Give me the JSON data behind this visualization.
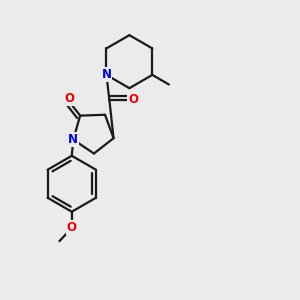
{
  "background_color": "#ebebeb",
  "bond_color": "#1a1a1a",
  "N_color": "#0000ee",
  "O_color": "#ee0000",
  "line_width": 1.6,
  "font_size": 8.5,
  "figsize": [
    3.0,
    3.0
  ],
  "dpi": 100,
  "xlim": [
    0,
    10
  ],
  "ylim": [
    0,
    10
  ]
}
